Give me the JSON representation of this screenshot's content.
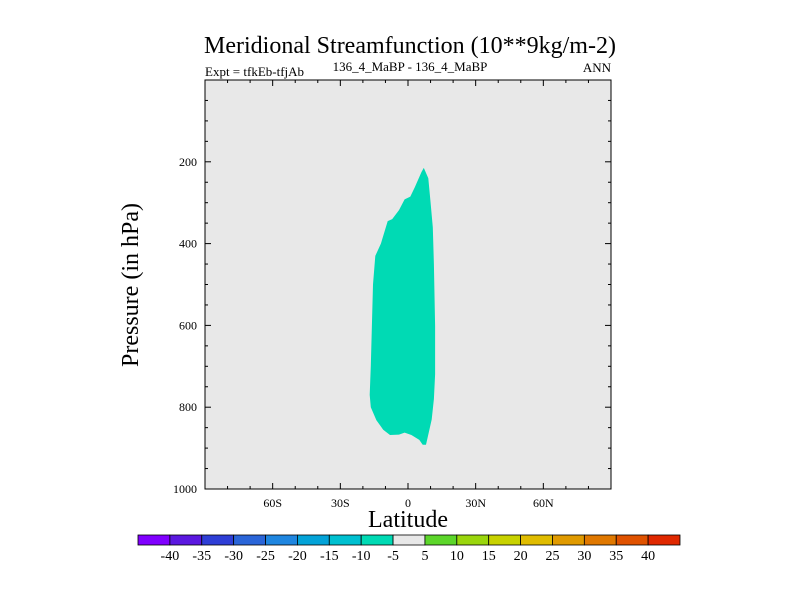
{
  "chart_data": {
    "type": "contour",
    "title": "Meridional Streamfunction (10**9kg/m-2)",
    "subtitle_left": "Expt = tfkEb-tfjAb",
    "subtitle_center": "136_4_MaBP - 136_4_MaBP",
    "subtitle_right": "ANN",
    "xlabel": "Latitude",
    "ylabel": "Pressure (in hPa)",
    "xlim": [
      -90,
      90
    ],
    "ylim": [
      1000,
      0
    ],
    "y_reversed": true,
    "x_ticks": [
      {
        "value": -60,
        "label": "60S"
      },
      {
        "value": -30,
        "label": "30S"
      },
      {
        "value": 0,
        "label": "0"
      },
      {
        "value": 30,
        "label": "30N"
      },
      {
        "value": 60,
        "label": "60N"
      }
    ],
    "y_ticks": [
      {
        "value": 200,
        "label": "200"
      },
      {
        "value": 400,
        "label": "400"
      },
      {
        "value": 600,
        "label": "600"
      },
      {
        "value": 800,
        "label": "800"
      },
      {
        "value": 1000,
        "label": "1000"
      }
    ],
    "background_color": "#e8e8e8",
    "filled_region": {
      "level_range": [
        -5,
        0
      ],
      "color": "#00dab4",
      "outline": [
        [
          7,
          215
        ],
        [
          9,
          240
        ],
        [
          10,
          300
        ],
        [
          11,
          360
        ],
        [
          11.5,
          450
        ],
        [
          12,
          600
        ],
        [
          12,
          720
        ],
        [
          11.5,
          780
        ],
        [
          10.5,
          830
        ],
        [
          8,
          892
        ],
        [
          6.5,
          892
        ],
        [
          5,
          880
        ],
        [
          1.5,
          868
        ],
        [
          -1.5,
          862
        ],
        [
          -4,
          867
        ],
        [
          -8,
          868
        ],
        [
          -11,
          855
        ],
        [
          -14,
          832
        ],
        [
          -16.5,
          800
        ],
        [
          -17,
          770
        ],
        [
          -16.5,
          700
        ],
        [
          -16,
          600
        ],
        [
          -15.5,
          500
        ],
        [
          -14.5,
          430
        ],
        [
          -12,
          400
        ],
        [
          -9,
          345
        ],
        [
          -7,
          340
        ],
        [
          -4,
          318
        ],
        [
          -1.5,
          292
        ],
        [
          1,
          285
        ],
        [
          3,
          262
        ],
        [
          6,
          225
        ]
      ]
    },
    "colorbar": {
      "labels": [
        "-40",
        "-35",
        "-30",
        "-25",
        "-20",
        "-15",
        "-10",
        "-5",
        "5",
        "10",
        "15",
        "20",
        "25",
        "30",
        "35",
        "40"
      ],
      "colors": [
        "#8000ff",
        "#5b18e0",
        "#2e3ed6",
        "#2a65d8",
        "#1f86e0",
        "#03a3d8",
        "#00c0d0",
        "#00dab4",
        "#e8e8e8",
        "#5cd62a",
        "#9ad60c",
        "#c8d200",
        "#e0bc00",
        "#e09a00",
        "#e07800",
        "#e05200",
        "#e02800"
      ]
    }
  }
}
